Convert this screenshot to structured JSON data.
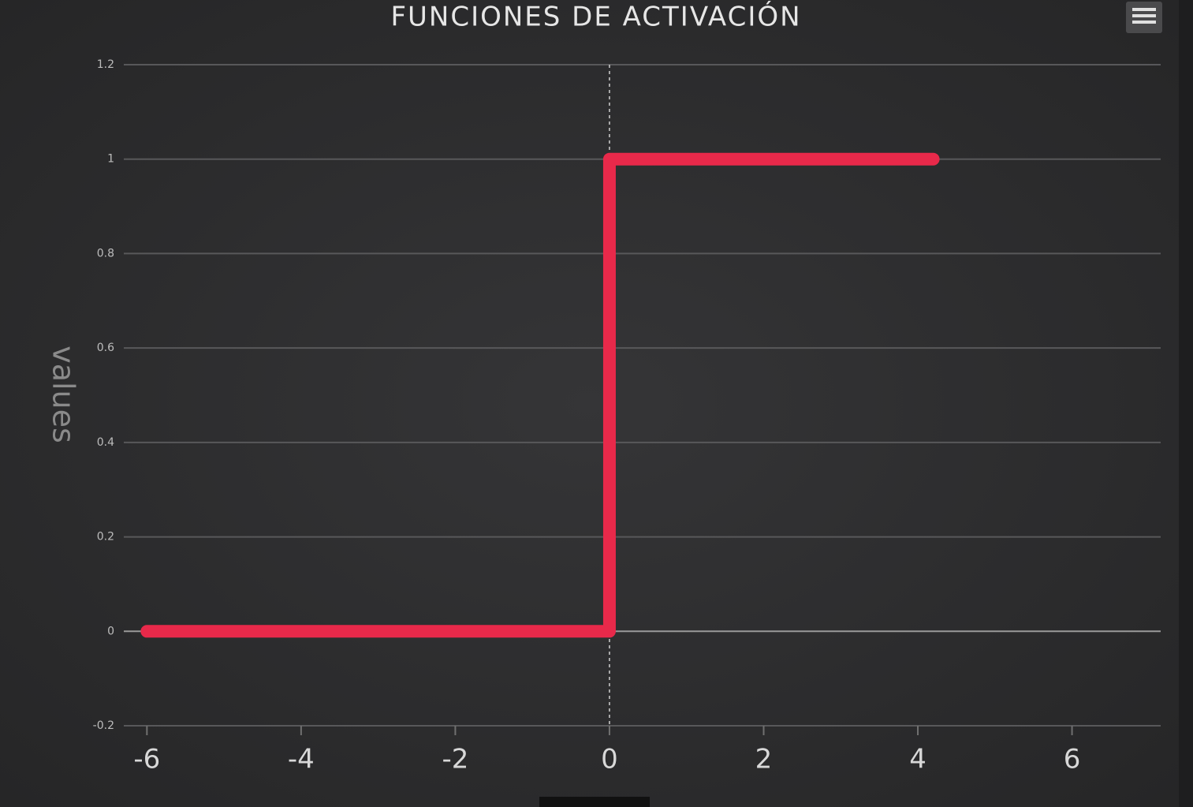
{
  "chart_data": {
    "type": "line",
    "title": "FUNCIONES DE ACTIVACIÓN",
    "y_axis_label": "values",
    "x": [
      -6,
      0,
      0,
      4.2
    ],
    "series": [
      {
        "color": "#e8294a",
        "values": [
          0,
          0,
          1,
          1
        ]
      }
    ],
    "xlim": [
      -6.3,
      7.15
    ],
    "xticks": [
      -6,
      -4,
      -2,
      0,
      2,
      4,
      6
    ],
    "ylim": [
      -0.2,
      1.2
    ],
    "yticks": [
      -0.2,
      0,
      0.2,
      0.4,
      0.6,
      0.8,
      1,
      1.2
    ],
    "x_plot_line": 0,
    "grid": true
  }
}
